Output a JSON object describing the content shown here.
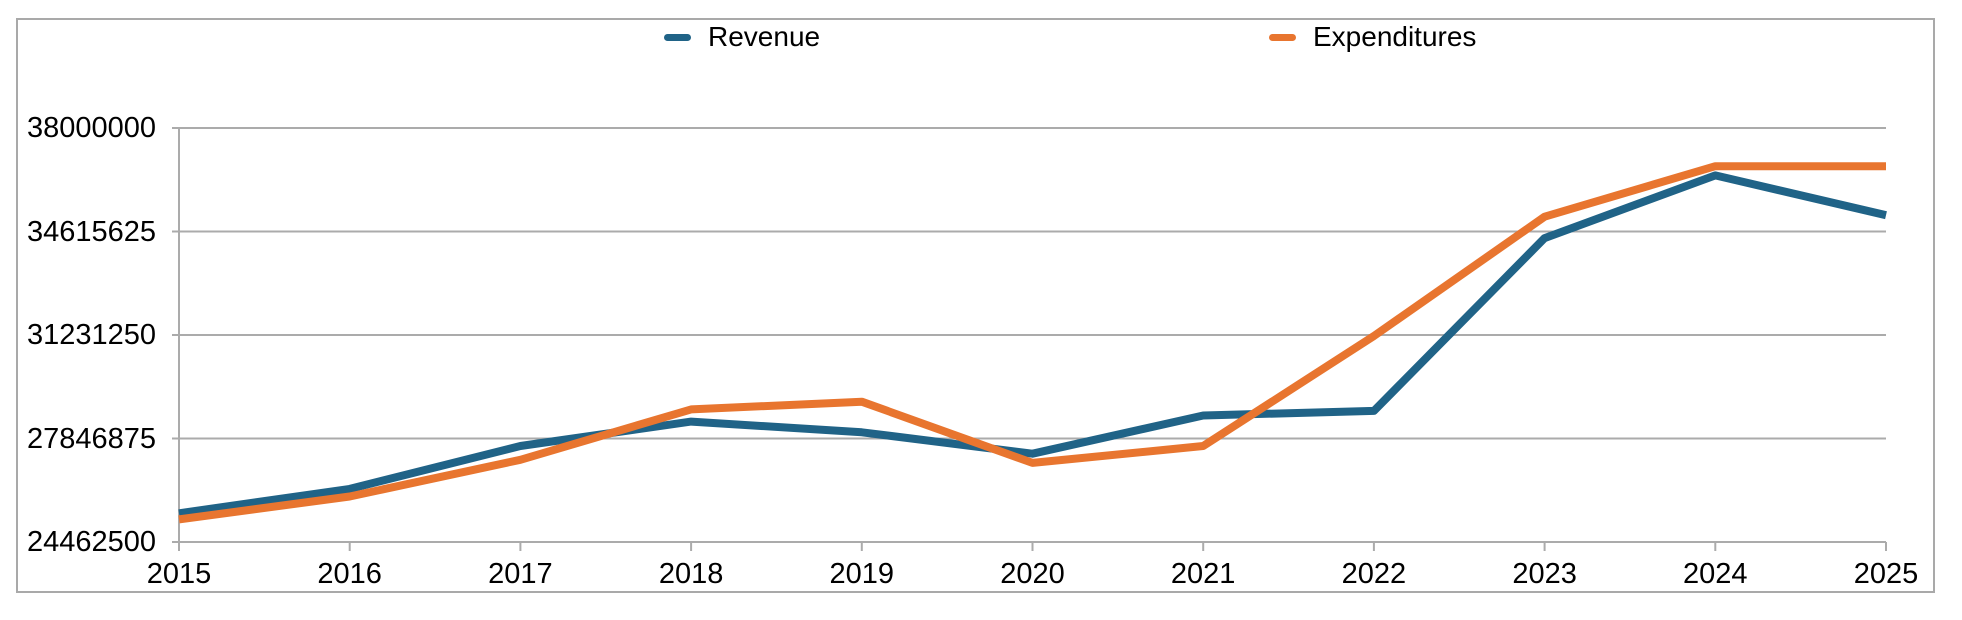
{
  "chart_data": {
    "type": "line",
    "title": "",
    "xlabel": "",
    "ylabel": "",
    "x_labels": [
      "2015",
      "2016",
      "2017",
      "2018",
      "2019",
      "2020",
      "2021",
      "2022",
      "2023",
      "2024",
      "2025"
    ],
    "y_ticks": [
      38000000,
      34615625,
      31231250,
      27846875,
      24462500
    ],
    "ylim": [
      24462500,
      38000000
    ],
    "grid": true,
    "legend_position": "top",
    "series": [
      {
        "name": "Revenue",
        "color": "#206387",
        "values": [
          25400000,
          26200000,
          27600000,
          28400000,
          28050000,
          27350000,
          28600000,
          28750000,
          34400000,
          36450000,
          35150000
        ]
      },
      {
        "name": "Expenditures",
        "color": "#E8752F",
        "values": [
          25200000,
          25950000,
          27150000,
          28800000,
          29050000,
          27050000,
          27600000,
          31200000,
          35100000,
          36750000,
          36750000
        ]
      }
    ]
  },
  "colors": {
    "grid": "#ababab",
    "frame": "#a9a9a9",
    "axis": "#ababab",
    "text": "#000000"
  }
}
